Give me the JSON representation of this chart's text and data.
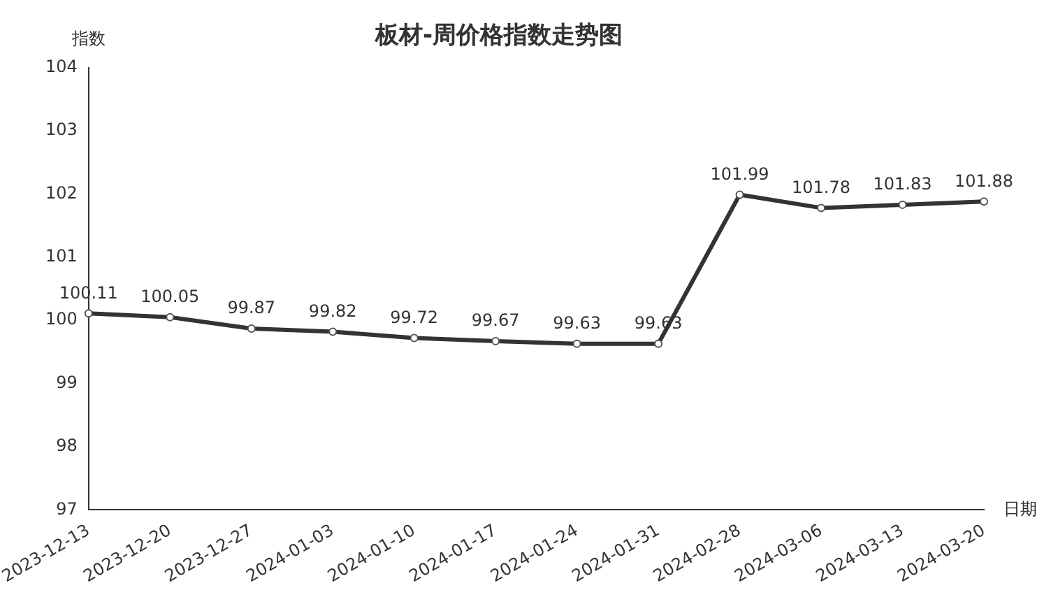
{
  "chart_data": {
    "type": "line",
    "title": "板材-周价格指数走势图",
    "xlabel": "日期",
    "ylabel": "指数",
    "categories": [
      "2023-12-13",
      "2023-12-20",
      "2023-12-27",
      "2024-01-03",
      "2024-01-10",
      "2024-01-17",
      "2024-01-24",
      "2024-01-31",
      "2024-02-28",
      "2024-03-06",
      "2024-03-13",
      "2024-03-20"
    ],
    "series": [
      {
        "color": "#333333",
        "values": [
          100.11,
          100.05,
          99.87,
          99.82,
          99.72,
          99.67,
          99.63,
          99.63,
          101.99,
          101.78,
          101.83,
          101.88
        ]
      }
    ],
    "ylim": [
      97,
      104
    ],
    "yticks": [
      97,
      98,
      99,
      100,
      101,
      102,
      103,
      104
    ],
    "data_labels": true,
    "grid": false,
    "legend": false,
    "marker": "circle",
    "line_style": "solid"
  }
}
